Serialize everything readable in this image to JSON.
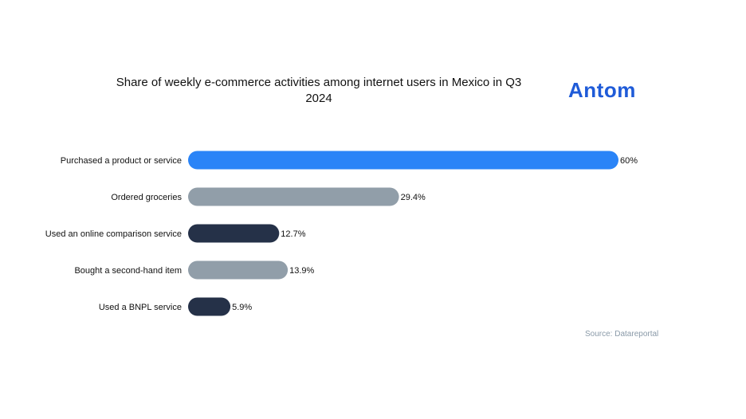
{
  "chart_data": {
    "type": "bar",
    "orientation": "horizontal",
    "title": "Share of weekly e-commerce activities among internet users in Mexico in Q3 2024",
    "categories": [
      "Purchased a product or service",
      "Ordered groceries",
      "Used an online comparison service",
      "Bought a second-hand item",
      "Used a BNPL service"
    ],
    "values": [
      60,
      29.4,
      12.7,
      13.9,
      5.9
    ],
    "value_labels": [
      "60%",
      "29.4%",
      "12.7%",
      "13.9%",
      "5.9%"
    ],
    "bar_colors": [
      "#2a84f7",
      "#919ea9",
      "#253148",
      "#919ea9",
      "#253148"
    ],
    "xlim": [
      0,
      60
    ],
    "grid": false,
    "legend": "none"
  },
  "brand": {
    "logo": "Antom",
    "color": "#1f5bd8"
  },
  "source": "Source: Datareportal"
}
